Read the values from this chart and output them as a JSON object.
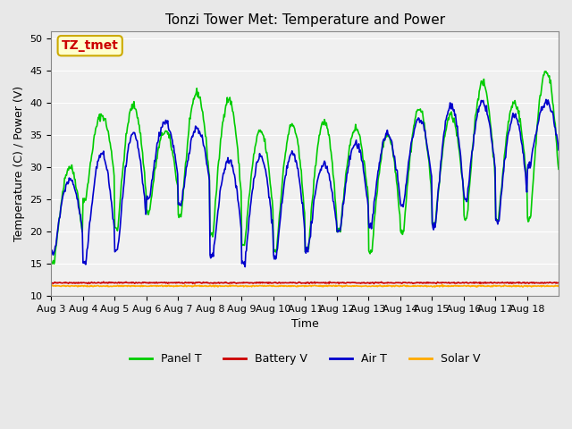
{
  "title": "Tonzi Tower Met: Temperature and Power",
  "xlabel": "Time",
  "ylabel": "Temperature (C) / Power (V)",
  "ylim": [
    10,
    51
  ],
  "yticks": [
    10,
    15,
    20,
    25,
    30,
    35,
    40,
    45,
    50
  ],
  "legend_labels": [
    "Panel T",
    "Battery V",
    "Air T",
    "Solar V"
  ],
  "legend_colors": [
    "#00cc00",
    "#cc0000",
    "#0000cc",
    "#ffaa00"
  ],
  "watermark_text": "TZ_tmet",
  "watermark_color": "#cc0000",
  "watermark_bg": "#ffffcc",
  "watermark_border": "#ccaa00",
  "bg_color": "#e8e8e8",
  "plot_bg": "#f0f0f0",
  "xtick_labels": [
    "Aug 3",
    "Aug 4",
    "Aug 5",
    "Aug 6",
    "Aug 7",
    "Aug 8",
    "Aug 9",
    "Aug 10",
    "Aug 11",
    "Aug 12",
    "Aug 13",
    "Aug 14",
    "Aug 15",
    "Aug 16",
    "Aug 17",
    "Aug 18"
  ],
  "n_days": 16,
  "panel_T_peaks": [
    30.0,
    38.0,
    39.5,
    35.5,
    41.5,
    40.5,
    35.5,
    36.5,
    37.0,
    36.0,
    35.0,
    39.0,
    38.0,
    43.0,
    40.0,
    45.0
  ],
  "panel_T_troughs": [
    15.0,
    25.0,
    20.5,
    23.0,
    22.5,
    19.5,
    18.0,
    17.0,
    17.0,
    20.0,
    17.0,
    20.0,
    21.0,
    22.0,
    22.0,
    22.0
  ],
  "air_T_peaks": [
    28.0,
    32.0,
    35.0,
    37.0,
    36.0,
    31.0,
    31.5,
    32.0,
    30.5,
    33.5,
    35.0,
    37.5,
    39.5,
    40.0,
    38.0,
    40.0
  ],
  "air_T_troughs": [
    16.5,
    15.0,
    17.0,
    25.0,
    24.0,
    16.0,
    15.0,
    16.0,
    17.0,
    20.0,
    21.0,
    24.0,
    21.0,
    25.0,
    21.5,
    30.0
  ],
  "battery_V": 12.0,
  "solar_V": 11.5
}
